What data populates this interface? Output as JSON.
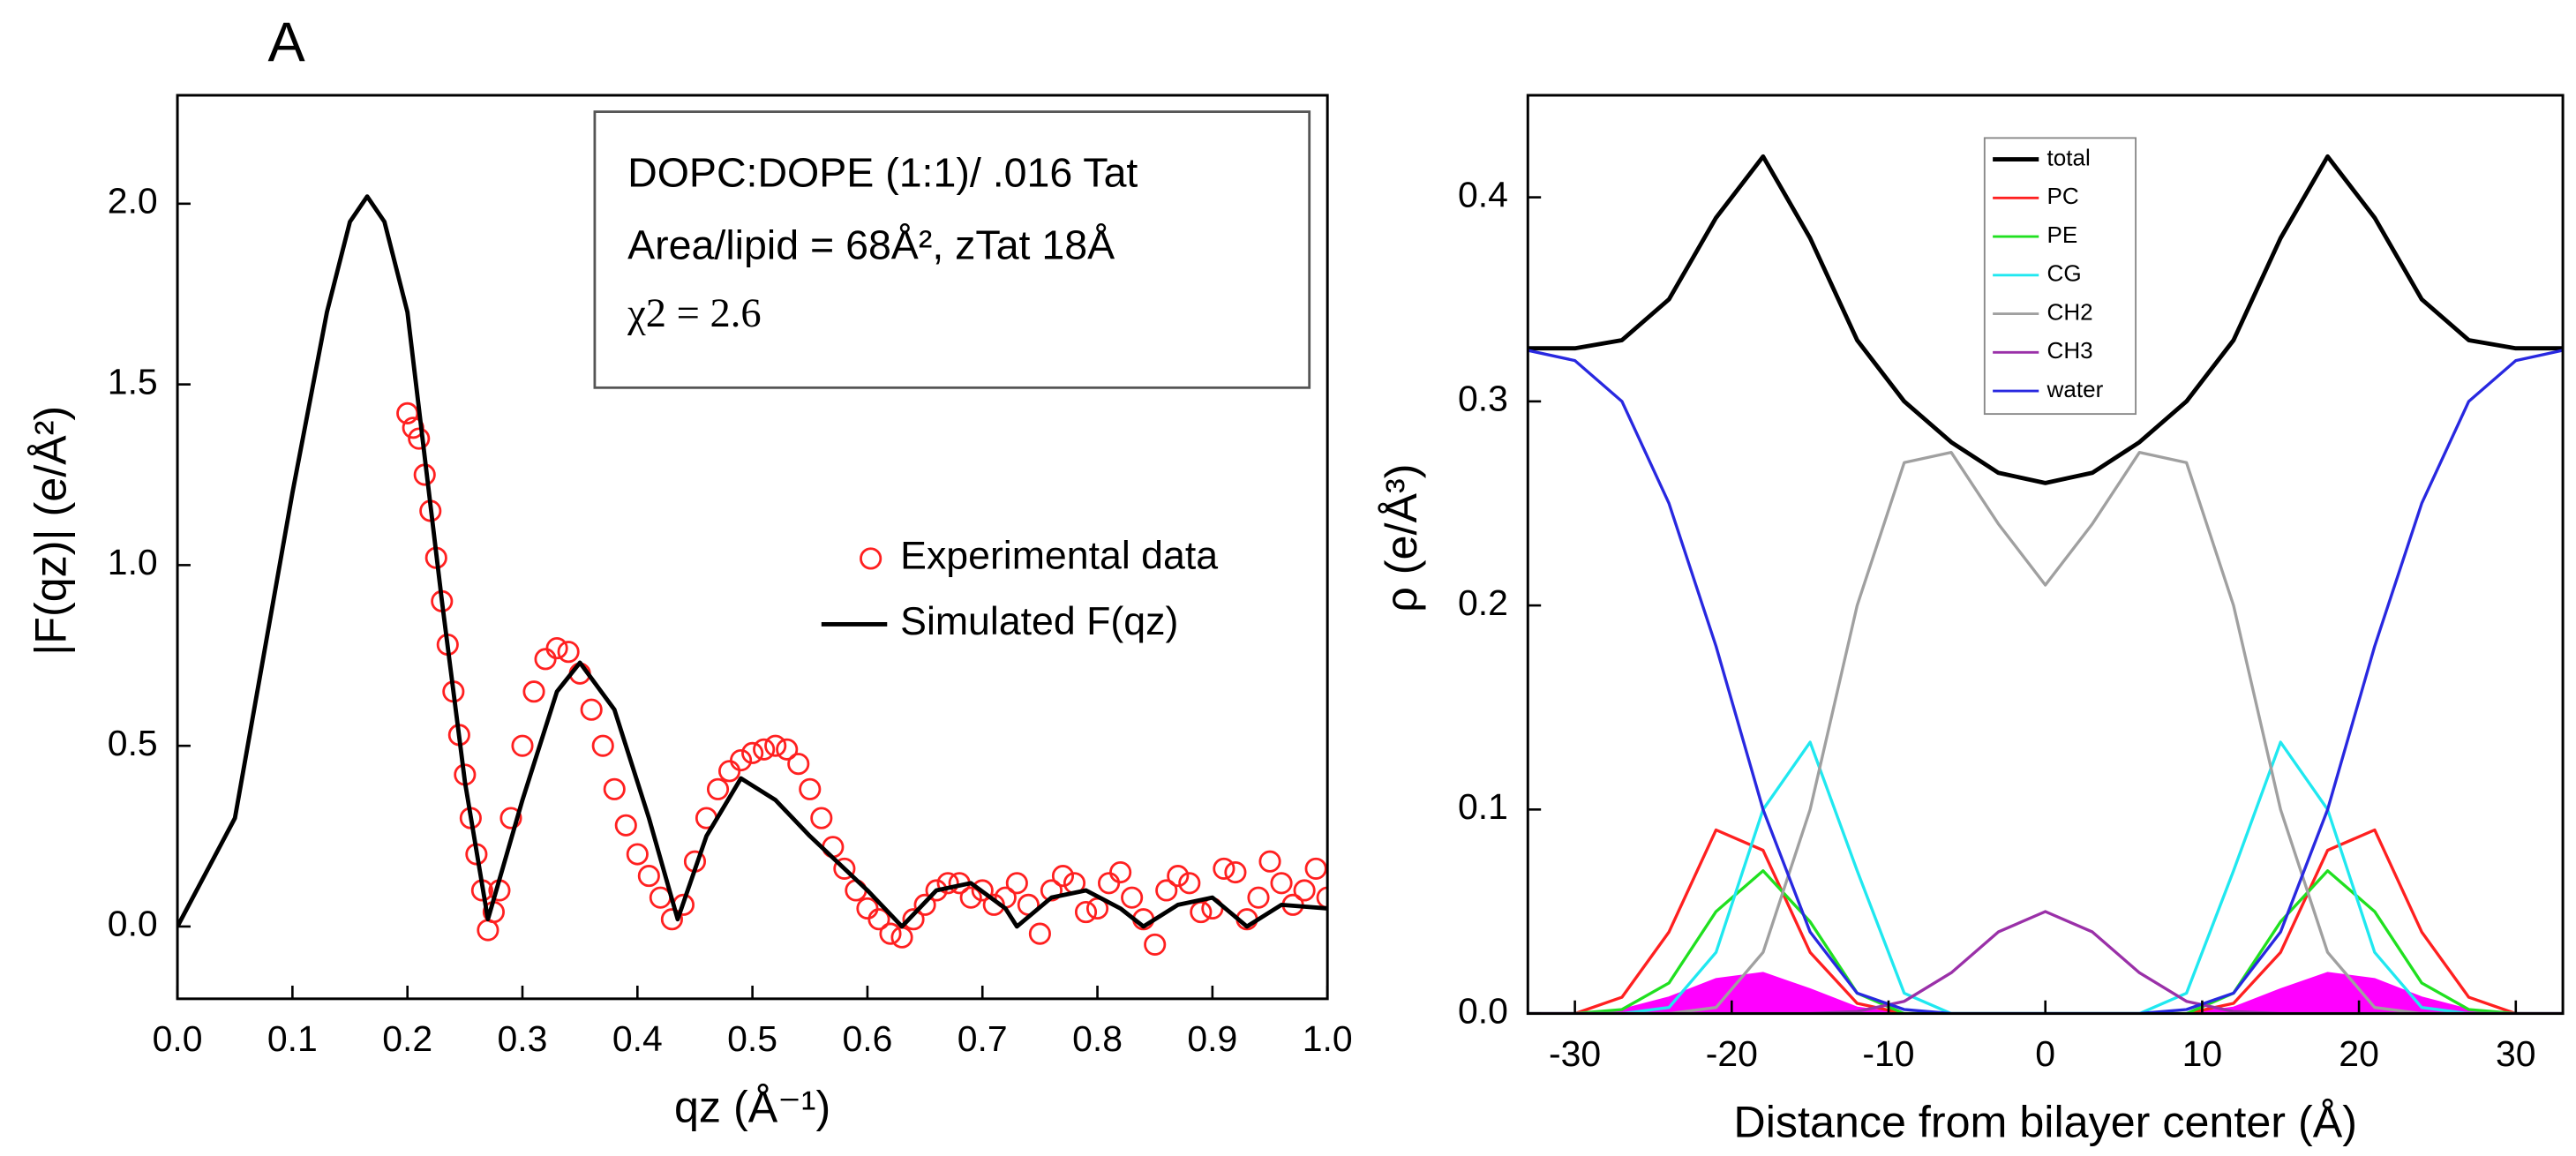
{
  "chart_data": [
    {
      "type": "scatter",
      "label": "A",
      "xlabel": "qz (Å⁻¹)",
      "ylabel": "|F(qz)| (e/Å²)",
      "annotations": [
        "DOPC:DOPE (1:1)/ .016 Tat",
        "Area/lipid = 68Å², zTat 18Å",
        "χ2 = 2.6"
      ],
      "xlim": [
        0,
        1
      ],
      "ylim": [
        -0.2,
        2.3
      ],
      "xticks": [
        {
          "value": 0,
          "label": "0.0"
        },
        0.1,
        0.2,
        0.3,
        0.4,
        0.5,
        0.6,
        0.7,
        0.8,
        0.9,
        {
          "value": 1,
          "label": "1.0"
        }
      ],
      "yticks": [
        {
          "value": 0,
          "label": "0.0"
        },
        0.5,
        {
          "value": 1,
          "label": "1.0"
        },
        1.5,
        {
          "value": 2,
          "label": "2.0"
        }
      ],
      "series": [
        {
          "name": "Experimental data",
          "color": "#ff2020",
          "style": "markers",
          "x": [
            0.2,
            0.205,
            0.21,
            0.215,
            0.22,
            0.225,
            0.23,
            0.235,
            0.24,
            0.245,
            0.25,
            0.255,
            0.26,
            0.265,
            0.27,
            0.275,
            0.28,
            0.29,
            0.3,
            0.31,
            0.32,
            0.33,
            0.34,
            0.35,
            0.36,
            0.37,
            0.38,
            0.39,
            0.4,
            0.41,
            0.42,
            0.43,
            0.44,
            0.45,
            0.46,
            0.47,
            0.48,
            0.49,
            0.5,
            0.51,
            0.52,
            0.53,
            0.54,
            0.55,
            0.56,
            0.57,
            0.58,
            0.59,
            0.6,
            0.61,
            0.62,
            0.63,
            0.64,
            0.65,
            0.66,
            0.67,
            0.68,
            0.69,
            0.7,
            0.71,
            0.72,
            0.73,
            0.74,
            0.75,
            0.76,
            0.77,
            0.78,
            0.79,
            0.8,
            0.81,
            0.82,
            0.83,
            0.84,
            0.85,
            0.86,
            0.87,
            0.88,
            0.89,
            0.9,
            0.91,
            0.92,
            0.93,
            0.94,
            0.95,
            0.96,
            0.97,
            0.98,
            0.99,
            1.0
          ],
          "values": [
            1.42,
            1.38,
            1.35,
            1.25,
            1.15,
            1.02,
            0.9,
            0.78,
            0.65,
            0.53,
            0.42,
            0.3,
            0.2,
            0.1,
            -0.01,
            0.04,
            0.1,
            0.3,
            0.5,
            0.65,
            0.74,
            0.77,
            0.76,
            0.7,
            0.6,
            0.5,
            0.38,
            0.28,
            0.2,
            0.14,
            0.08,
            0.02,
            0.06,
            0.18,
            0.3,
            0.38,
            0.43,
            0.46,
            0.48,
            0.49,
            0.5,
            0.49,
            0.45,
            0.38,
            0.3,
            0.22,
            0.16,
            0.1,
            0.05,
            0.02,
            -0.02,
            -0.03,
            0.02,
            0.06,
            0.1,
            0.12,
            0.12,
            0.08,
            0.1,
            0.06,
            0.08,
            0.12,
            0.06,
            -0.02,
            0.1,
            0.14,
            0.12,
            0.04,
            0.05,
            0.12,
            0.15,
            0.08,
            0.02,
            -0.05,
            0.1,
            0.14,
            0.12,
            0.04,
            0.05,
            0.16,
            0.15,
            0.02,
            0.08,
            0.18,
            0.12,
            0.06,
            0.1,
            0.16,
            0.08
          ]
        },
        {
          "name": "Simulated F(qz)",
          "color": "#000000",
          "style": "line",
          "x": [
            0,
            0.05,
            0.1,
            0.13,
            0.15,
            0.165,
            0.18,
            0.2,
            0.23,
            0.25,
            0.27,
            0.3,
            0.33,
            0.35,
            0.38,
            0.41,
            0.435,
            0.46,
            0.49,
            0.52,
            0.55,
            0.6,
            0.63,
            0.66,
            0.69,
            0.72,
            0.73,
            0.76,
            0.79,
            0.82,
            0.84,
            0.87,
            0.9,
            0.93,
            0.96,
            1.0
          ],
          "values": [
            0,
            0.3,
            1.2,
            1.7,
            1.95,
            2.02,
            1.95,
            1.7,
            0.9,
            0.4,
            0.02,
            0.35,
            0.65,
            0.73,
            0.6,
            0.3,
            0.02,
            0.25,
            0.41,
            0.35,
            0.25,
            0.1,
            0,
            0.1,
            0.12,
            0.05,
            0,
            0.08,
            0.1,
            0.05,
            0,
            0.06,
            0.08,
            0,
            0.06,
            0.05
          ]
        }
      ]
    },
    {
      "type": "line",
      "xlabel": "Distance from bilayer center (Å)",
      "ylabel": "ρ (e/Å³)",
      "xlim": [
        -33,
        33
      ],
      "ylim": [
        0,
        0.45
      ],
      "xticks": [
        -30,
        -20,
        -10,
        0,
        10,
        20,
        30
      ],
      "yticks": [
        {
          "value": 0,
          "label": "0.0"
        },
        0.1,
        0.2,
        0.3,
        0.4
      ],
      "x": [
        -33,
        -30,
        -27,
        -24,
        -21,
        -18,
        -15,
        -12,
        -9,
        -6,
        -3,
        0,
        3,
        6,
        9,
        12,
        15,
        18,
        21,
        24,
        27,
        30,
        33
      ],
      "series": [
        {
          "color": "#ff00ff",
          "fill": true,
          "values": [
            0,
            0,
            0.002,
            0.008,
            0.017,
            0.02,
            0.012,
            0.003,
            0,
            0,
            0,
            0,
            0,
            0,
            0,
            0.003,
            0.012,
            0.02,
            0.017,
            0.008,
            0.002,
            0,
            0
          ]
        },
        {
          "name": "total",
          "color": "#000000",
          "values": [
            0.326,
            0.326,
            0.33,
            0.35,
            0.39,
            0.42,
            0.38,
            0.33,
            0.3,
            0.28,
            0.265,
            0.26,
            0.265,
            0.28,
            0.3,
            0.33,
            0.38,
            0.42,
            0.39,
            0.35,
            0.33,
            0.326,
            0.326
          ]
        },
        {
          "name": "PC",
          "color": "#ff2020",
          "values": [
            0,
            0,
            0.008,
            0.04,
            0.09,
            0.08,
            0.03,
            0.005,
            0,
            0,
            0,
            0,
            0,
            0,
            0,
            0.005,
            0.03,
            0.08,
            0.09,
            0.04,
            0.008,
            0,
            0
          ]
        },
        {
          "name": "PE",
          "color": "#20e020",
          "values": [
            0,
            0,
            0.002,
            0.015,
            0.05,
            0.07,
            0.045,
            0.01,
            0,
            0,
            0,
            0,
            0,
            0,
            0,
            0.01,
            0.045,
            0.07,
            0.05,
            0.015,
            0.002,
            0,
            0
          ]
        },
        {
          "name": "CG",
          "color": "#20e8f0",
          "values": [
            0,
            0,
            0,
            0.003,
            0.03,
            0.1,
            0.133,
            0.07,
            0.01,
            0,
            0,
            0,
            0,
            0,
            0.01,
            0.07,
            0.133,
            0.1,
            0.03,
            0.003,
            0,
            0,
            0
          ]
        },
        {
          "name": "CH2",
          "color": "#a0a0a0",
          "values": [
            0,
            0,
            0,
            0,
            0.003,
            0.03,
            0.1,
            0.2,
            0.27,
            0.275,
            0.24,
            0.21,
            0.24,
            0.275,
            0.27,
            0.2,
            0.1,
            0.03,
            0.003,
            0,
            0,
            0,
            0
          ]
        },
        {
          "name": "CH3",
          "color": "#9a30a8",
          "values": [
            0,
            0,
            0,
            0,
            0,
            0,
            0,
            0.001,
            0.006,
            0.02,
            0.04,
            0.05,
            0.04,
            0.02,
            0.006,
            0.001,
            0,
            0,
            0,
            0,
            0,
            0,
            0
          ]
        },
        {
          "name": "water",
          "color": "#2828e0",
          "values": [
            0.325,
            0.32,
            0.3,
            0.25,
            0.18,
            0.1,
            0.04,
            0.01,
            0.002,
            0,
            0,
            0,
            0,
            0,
            0.002,
            0.01,
            0.04,
            0.1,
            0.18,
            0.25,
            0.3,
            0.32,
            0.325
          ]
        }
      ]
    }
  ]
}
